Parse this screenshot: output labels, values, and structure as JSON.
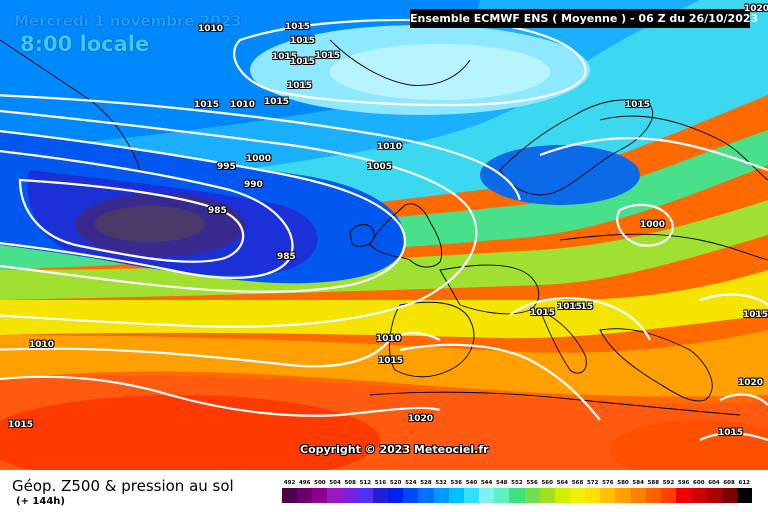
{
  "header": {
    "date": "Mercredi 1 novembre 2023",
    "local_time": "8:00 locale",
    "model_run": "Ensemble ECMWF ENS  ( Moyenne )  - 06 Z du 26/10/2023"
  },
  "map": {
    "copyright": "Copyright © 2023 Meteociel.fr",
    "isobar_labels": [
      "1010",
      "1020",
      "1015",
      "1015",
      "1015",
      "1015",
      "1015",
      "1015",
      "1015",
      "1010",
      "1015",
      "1015",
      "1010",
      "1010",
      "1000",
      "995",
      "990",
      "985",
      "985",
      "1005",
      "1015",
      "1000",
      "1015",
      "1015",
      "1010",
      "1015",
      "1020",
      "1020",
      "1015",
      "1015",
      "1015"
    ]
  },
  "footer": {
    "title": "Géop. Z500 & pression au sol",
    "lead_time": "(+ 144h)"
  },
  "legend": {
    "ticks": [
      "492",
      "496",
      "500",
      "504",
      "508",
      "512",
      "516",
      "520",
      "524",
      "528",
      "532",
      "536",
      "540",
      "544",
      "548",
      "552",
      "556",
      "560",
      "564",
      "568",
      "572",
      "576",
      "580",
      "584",
      "588",
      "592",
      "596",
      "600",
      "604",
      "608",
      "612"
    ],
    "colors": [
      "#4b0049",
      "#6a0066",
      "#8a0090",
      "#9a16c6",
      "#7a1ee6",
      "#5030f6",
      "#2020d8",
      "#0020f0",
      "#0048ff",
      "#0070ff",
      "#0099ff",
      "#00c0ff",
      "#30e0ff",
      "#80f0f0",
      "#60f0c0",
      "#40e080",
      "#70e050",
      "#a0e020",
      "#d0f000",
      "#f0f000",
      "#ffe000",
      "#ffc000",
      "#ffa000",
      "#ff8000",
      "#ff6000",
      "#ff4000",
      "#f00000",
      "#d00000",
      "#b00000",
      "#800000",
      "#000000"
    ]
  }
}
